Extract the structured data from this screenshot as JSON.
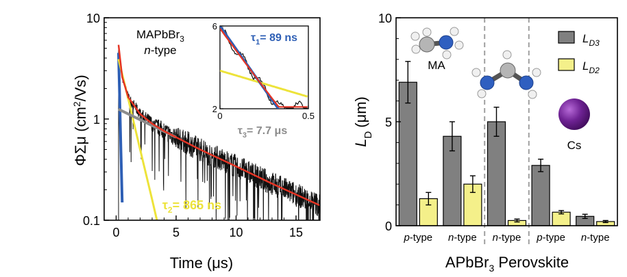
{
  "chart_data": [
    {
      "type": "line",
      "xscale": "linear",
      "yscale": "log",
      "xlim": [
        -1,
        17
      ],
      "ylim": [
        0.1,
        10
      ],
      "xticks": [
        0,
        5,
        10,
        15
      ],
      "yticks": [
        {
          "v": 0.1,
          "label": "0.1"
        },
        {
          "v": 1,
          "label": "1"
        },
        {
          "v": 10,
          "label": "10"
        }
      ],
      "xlabel": "Time (μs)",
      "ylabel": "ΦΣμ (cm²/Vs)",
      "annotation": {
        "material": "MAPbBr",
        "material_sub": "3",
        "doping": "n-type"
      },
      "series": [
        {
          "name": "τ1 = 89 ns",
          "label_main": "τ",
          "label_sub": "1",
          "label_rest": "= 89 ns",
          "color": "#2e5fb5",
          "x": [
            0.2,
            0.3,
            0.4,
            0.5
          ],
          "y": [
            4.5,
            1.45,
            0.47,
            0.15
          ]
        },
        {
          "name": "τ2 = 865 ns",
          "label_main": "τ",
          "label_sub": "2",
          "label_rest": "= 865 ns",
          "color": "#ede33a",
          "x": [
            0.2,
            1.0,
            2.0,
            3.0,
            3.4
          ],
          "y": [
            3.9,
            1.6,
            0.5,
            0.16,
            0.1
          ]
        },
        {
          "name": "τ3 = 7.7 μs",
          "label_main": "τ",
          "label_sub": "3",
          "label_rest": "= 7.7 μs",
          "color": "#8c8c8c",
          "x": [
            0.2,
            5.0
          ],
          "y": [
            1.25,
            0.66
          ]
        },
        {
          "name": "fit",
          "color": "#e53424",
          "x": [
            0.2,
            0.5,
            1,
            2,
            3,
            4,
            5,
            7,
            10,
            13,
            17
          ],
          "y": [
            5.4,
            2.6,
            1.65,
            1.12,
            0.9,
            0.76,
            0.66,
            0.5,
            0.34,
            0.23,
            0.14
          ]
        }
      ],
      "data_color": "#111111",
      "inset": {
        "xlim": [
          0,
          0.5
        ],
        "ylim": [
          2,
          6
        ],
        "xticks": [
          {
            "v": 0,
            "label": "0"
          },
          {
            "v": 0.5,
            "label": "0.5"
          }
        ],
        "yticks": [
          {
            "v": 2,
            "label": "2"
          },
          {
            "v": 6,
            "label": "6"
          }
        ]
      }
    },
    {
      "type": "bar",
      "xlabel": "APbBr₃ Perovskite",
      "xlabel_main": "APbBr",
      "xlabel_sub": "3",
      "xlabel_rest": " Perovskite",
      "ylabel": "L_D (μm)",
      "ylabel_main": "L",
      "ylabel_sub": "D",
      "ylabel_unit": "(μm)",
      "ylim": [
        0,
        10
      ],
      "yticks": [
        0,
        5,
        10
      ],
      "categories": [
        "p-type",
        "n-type",
        "n-type",
        "p-type",
        "n-type"
      ],
      "series": [
        {
          "name": "L_D3",
          "label_main": "L",
          "label_sub": "D3",
          "color": "#808080",
          "values": [
            6.9,
            4.3,
            5.0,
            2.9,
            0.45
          ],
          "errors": [
            1.0,
            0.7,
            0.7,
            0.3,
            0.1
          ]
        },
        {
          "name": "L_D2",
          "label_main": "L",
          "label_sub": "D2",
          "color": "#f4f08a",
          "values": [
            1.3,
            2.0,
            0.25,
            0.65,
            0.2
          ],
          "errors": [
            0.3,
            0.4,
            0.07,
            0.08,
            0.05
          ]
        }
      ],
      "group_labels": [
        "MA",
        "Cs"
      ],
      "dividers_after_category": [
        1,
        2
      ],
      "legend_position": "top-right"
    }
  ]
}
